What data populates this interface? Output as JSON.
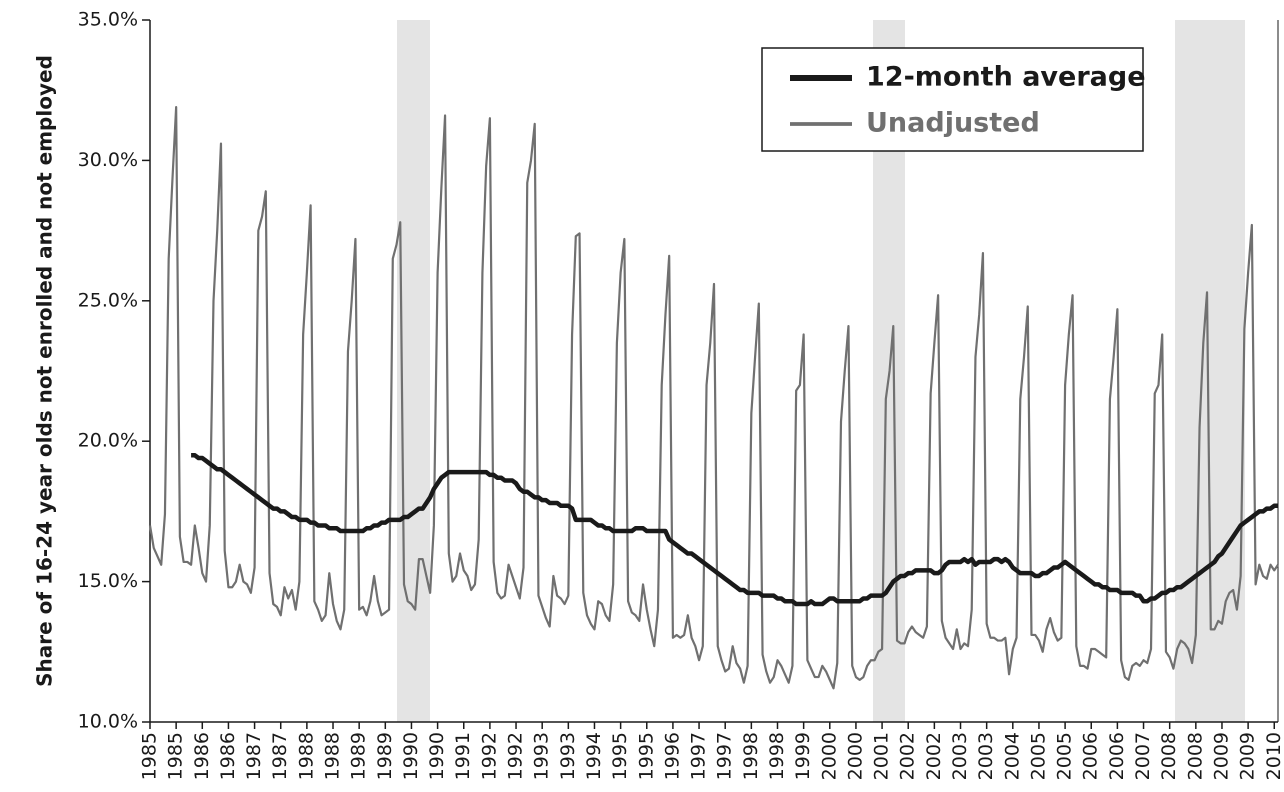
{
  "chart_data": {
    "type": "line",
    "y_label": "Share of 16-24 year olds not enrolled and not employed",
    "categories": [
      "1985",
      null,
      null,
      null,
      null,
      null,
      null,
      "1985",
      null,
      null,
      null,
      null,
      null,
      null,
      "1986",
      null,
      null,
      null,
      null,
      null,
      null,
      "1986",
      null,
      null,
      null,
      null,
      null,
      null,
      "1987",
      null,
      null,
      null,
      null,
      null,
      null,
      "1987",
      null,
      null,
      null,
      null,
      null,
      null,
      "1988",
      null,
      null,
      null,
      null,
      null,
      null,
      "1988",
      null,
      null,
      null,
      null,
      null,
      null,
      "1989",
      null,
      null,
      null,
      null,
      null,
      null,
      "1989",
      null,
      null,
      null,
      null,
      null,
      null,
      "1990",
      null,
      null,
      null,
      null,
      null,
      null,
      "1990",
      null,
      null,
      null,
      null,
      null,
      null,
      "1991",
      null,
      null,
      null,
      null,
      null,
      null,
      "1992",
      null,
      null,
      null,
      null,
      null,
      null,
      "1992",
      null,
      null,
      null,
      null,
      null,
      null,
      "1993",
      null,
      null,
      null,
      null,
      null,
      null,
      "1993",
      null,
      null,
      null,
      null,
      null,
      null,
      "1994",
      null,
      null,
      null,
      null,
      null,
      null,
      "1995",
      null,
      null,
      null,
      null,
      null,
      null,
      "1995",
      null,
      null,
      null,
      null,
      null,
      null,
      "1996",
      null,
      null,
      null,
      null,
      null,
      null,
      "1997",
      null,
      null,
      null,
      null,
      null,
      null,
      "1997",
      null,
      null,
      null,
      null,
      null,
      null,
      "1998",
      null,
      null,
      null,
      null,
      null,
      null,
      "1998",
      null,
      null,
      null,
      null,
      null,
      null,
      "1999",
      null,
      null,
      null,
      null,
      null,
      null,
      "2000",
      null,
      null,
      null,
      null,
      null,
      null,
      "2000",
      null,
      null,
      null,
      null,
      null,
      null,
      "2001",
      null,
      null,
      null,
      null,
      null,
      null,
      "2002",
      null,
      null,
      null,
      null,
      null,
      null,
      "2002",
      null,
      null,
      null,
      null,
      null,
      null,
      "2003",
      null,
      null,
      null,
      null,
      null,
      null,
      "2003",
      null,
      null,
      null,
      null,
      null,
      null,
      "2004",
      null,
      null,
      null,
      null,
      null,
      null,
      "2005",
      null,
      null,
      null,
      null,
      null,
      null,
      "2005",
      null,
      null,
      null,
      null,
      null,
      null,
      "2006",
      null,
      null,
      null,
      null,
      null,
      null,
      "2006",
      null,
      null,
      null,
      null,
      null,
      null,
      "2007",
      null,
      null,
      null,
      null,
      null,
      null,
      "2008",
      null,
      null,
      null,
      null,
      null,
      null,
      "2008",
      null,
      null,
      null,
      null,
      null,
      null,
      "2009",
      null,
      null,
      null,
      null,
      null,
      null,
      "2009",
      null,
      null,
      null,
      null,
      null,
      null,
      "2010",
      null
    ],
    "series": [
      {
        "name": "12-month average",
        "color": "#1a1a1a",
        "width": 4.5,
        "values": [
          null,
          null,
          null,
          null,
          null,
          null,
          null,
          null,
          null,
          null,
          null,
          19.5,
          19.5,
          19.4,
          19.4,
          19.3,
          19.2,
          19.1,
          19.0,
          19.0,
          18.9,
          18.8,
          18.7,
          18.6,
          18.5,
          18.4,
          18.3,
          18.2,
          18.1,
          18.0,
          17.9,
          17.8,
          17.7,
          17.6,
          17.6,
          17.5,
          17.5,
          17.4,
          17.3,
          17.3,
          17.2,
          17.2,
          17.2,
          17.1,
          17.1,
          17.0,
          17.0,
          17.0,
          16.9,
          16.9,
          16.9,
          16.8,
          16.8,
          16.8,
          16.8,
          16.8,
          16.8,
          16.8,
          16.9,
          16.9,
          17.0,
          17.0,
          17.1,
          17.1,
          17.2,
          17.2,
          17.2,
          17.2,
          17.3,
          17.3,
          17.4,
          17.5,
          17.6,
          17.6,
          17.8,
          18.0,
          18.3,
          18.5,
          18.7,
          18.8,
          18.9,
          18.9,
          18.9,
          18.9,
          18.9,
          18.9,
          18.9,
          18.9,
          18.9,
          18.9,
          18.9,
          18.8,
          18.8,
          18.7,
          18.7,
          18.6,
          18.6,
          18.6,
          18.5,
          18.3,
          18.2,
          18.2,
          18.1,
          18.0,
          18.0,
          17.9,
          17.9,
          17.8,
          17.8,
          17.8,
          17.7,
          17.7,
          17.7,
          17.6,
          17.2,
          17.2,
          17.2,
          17.2,
          17.2,
          17.1,
          17.0,
          17.0,
          16.9,
          16.9,
          16.8,
          16.8,
          16.8,
          16.8,
          16.8,
          16.8,
          16.9,
          16.9,
          16.9,
          16.8,
          16.8,
          16.8,
          16.8,
          16.8,
          16.8,
          16.5,
          16.4,
          16.3,
          16.2,
          16.1,
          16.0,
          16.0,
          15.9,
          15.8,
          15.7,
          15.6,
          15.5,
          15.4,
          15.3,
          15.2,
          15.1,
          15.0,
          14.9,
          14.8,
          14.7,
          14.7,
          14.6,
          14.6,
          14.6,
          14.6,
          14.5,
          14.5,
          14.5,
          14.5,
          14.4,
          14.4,
          14.3,
          14.3,
          14.3,
          14.2,
          14.2,
          14.2,
          14.2,
          14.3,
          14.2,
          14.2,
          14.2,
          14.3,
          14.4,
          14.4,
          14.3,
          14.3,
          14.3,
          14.3,
          14.3,
          14.3,
          14.3,
          14.4,
          14.4,
          14.5,
          14.5,
          14.5,
          14.5,
          14.6,
          14.8,
          15.0,
          15.1,
          15.2,
          15.2,
          15.3,
          15.3,
          15.4,
          15.4,
          15.4,
          15.4,
          15.4,
          15.3,
          15.3,
          15.4,
          15.6,
          15.7,
          15.7,
          15.7,
          15.7,
          15.8,
          15.7,
          15.8,
          15.6,
          15.7,
          15.7,
          15.7,
          15.7,
          15.8,
          15.8,
          15.7,
          15.8,
          15.7,
          15.5,
          15.4,
          15.3,
          15.3,
          15.3,
          15.3,
          15.2,
          15.2,
          15.3,
          15.3,
          15.4,
          15.5,
          15.5,
          15.6,
          15.7,
          15.6,
          15.5,
          15.4,
          15.3,
          15.2,
          15.1,
          15.0,
          14.9,
          14.9,
          14.8,
          14.8,
          14.7,
          14.7,
          14.7,
          14.6,
          14.6,
          14.6,
          14.6,
          14.5,
          14.5,
          14.3,
          14.3,
          14.4,
          14.4,
          14.5,
          14.6,
          14.6,
          14.7,
          14.7,
          14.8,
          14.8,
          14.9,
          15.0,
          15.1,
          15.2,
          15.3,
          15.4,
          15.5,
          15.6,
          15.7,
          15.9,
          16.0,
          16.2,
          16.4,
          16.6,
          16.8,
          17.0,
          17.1,
          17.2,
          17.3,
          17.4,
          17.5,
          17.5,
          17.6,
          17.6,
          17.7,
          17.7
        ]
      },
      {
        "name": "Unadjusted",
        "color": "#707070",
        "width": 2.2,
        "values": [
          17.0,
          16.2,
          15.9,
          15.6,
          17.4,
          26.5,
          29.3,
          31.9,
          16.6,
          15.7,
          15.7,
          15.6,
          17.0,
          16.2,
          15.3,
          15.0,
          17.0,
          25.0,
          27.5,
          30.6,
          16.1,
          14.8,
          14.8,
          15.0,
          15.6,
          15.0,
          14.9,
          14.6,
          15.5,
          27.5,
          28.0,
          28.9,
          15.3,
          14.2,
          14.1,
          13.8,
          14.8,
          14.4,
          14.7,
          14.0,
          15.0,
          23.8,
          26.0,
          28.4,
          14.3,
          14.0,
          13.6,
          13.8,
          15.3,
          14.2,
          13.6,
          13.3,
          14.0,
          23.2,
          25.0,
          27.2,
          14.0,
          14.1,
          13.8,
          14.3,
          15.2,
          14.3,
          13.8,
          13.9,
          14.0,
          26.5,
          27.0,
          27.8,
          14.9,
          14.3,
          14.2,
          14.0,
          15.8,
          15.8,
          15.2,
          14.6,
          17.0,
          26.0,
          29.0,
          31.6,
          16.0,
          15.0,
          15.2,
          16.0,
          15.4,
          15.2,
          14.7,
          14.9,
          16.5,
          26.0,
          29.8,
          31.5,
          15.7,
          14.6,
          14.4,
          14.5,
          15.6,
          15.2,
          14.8,
          14.4,
          15.5,
          29.2,
          30.0,
          31.3,
          14.5,
          14.1,
          13.7,
          13.4,
          15.2,
          14.5,
          14.4,
          14.2,
          14.5,
          23.8,
          27.3,
          27.4,
          14.6,
          13.8,
          13.5,
          13.3,
          14.3,
          14.2,
          13.8,
          13.6,
          14.9,
          23.5,
          26.0,
          27.2,
          14.3,
          13.9,
          13.8,
          13.6,
          14.9,
          14.0,
          13.3,
          12.7,
          14.0,
          22.0,
          24.5,
          26.6,
          13.0,
          13.1,
          13.0,
          13.1,
          13.8,
          13.0,
          12.7,
          12.2,
          12.7,
          22.0,
          23.5,
          25.6,
          12.7,
          12.2,
          11.8,
          11.9,
          12.7,
          12.1,
          11.9,
          11.4,
          12.0,
          21.0,
          23.0,
          24.9,
          12.4,
          11.8,
          11.4,
          11.6,
          12.2,
          12.0,
          11.7,
          11.4,
          12.0,
          21.8,
          22.0,
          23.8,
          12.2,
          11.9,
          11.6,
          11.6,
          12.0,
          11.8,
          11.5,
          11.2,
          12.1,
          20.7,
          22.5,
          24.1,
          12.0,
          11.6,
          11.5,
          11.6,
          12.0,
          12.2,
          12.2,
          12.5,
          12.6,
          21.5,
          22.5,
          24.1,
          12.9,
          12.8,
          12.8,
          13.2,
          13.4,
          13.2,
          13.1,
          13.0,
          13.4,
          21.7,
          23.5,
          25.2,
          13.6,
          13.0,
          12.8,
          12.6,
          13.3,
          12.6,
          12.8,
          12.7,
          14.0,
          23.0,
          24.5,
          26.7,
          13.5,
          13.0,
          13.0,
          12.9,
          12.9,
          13.0,
          11.7,
          12.6,
          13.0,
          21.5,
          23.0,
          24.8,
          13.1,
          13.1,
          12.9,
          12.5,
          13.3,
          13.7,
          13.2,
          12.9,
          13.0,
          22.0,
          23.8,
          25.2,
          12.7,
          12.0,
          12.0,
          11.9,
          12.6,
          12.6,
          12.5,
          12.4,
          12.3,
          21.5,
          23.0,
          24.7,
          12.2,
          11.6,
          11.5,
          12.0,
          12.1,
          12.0,
          12.2,
          12.1,
          12.6,
          21.7,
          22.0,
          23.8,
          12.5,
          12.3,
          11.9,
          12.6,
          12.9,
          12.8,
          12.6,
          12.1,
          13.1,
          20.5,
          23.5,
          25.3,
          13.3,
          13.3,
          13.6,
          13.5,
          14.3,
          14.6,
          14.7,
          14.0,
          15.2,
          24.0,
          26.0,
          27.7,
          14.9,
          15.6,
          15.2,
          15.1,
          15.6,
          15.4,
          15.6
        ]
      }
    ],
    "ylim": [
      10,
      35
    ],
    "yticks": [
      {
        "value": 10,
        "label": "10.0%"
      },
      {
        "value": 15,
        "label": "15.0%"
      },
      {
        "value": 20,
        "label": "20.0%"
      },
      {
        "value": 25,
        "label": "25.0%"
      },
      {
        "value": 30,
        "label": "30.0%"
      },
      {
        "value": 35,
        "label": "35.0%"
      }
    ],
    "grid": false
  }
}
